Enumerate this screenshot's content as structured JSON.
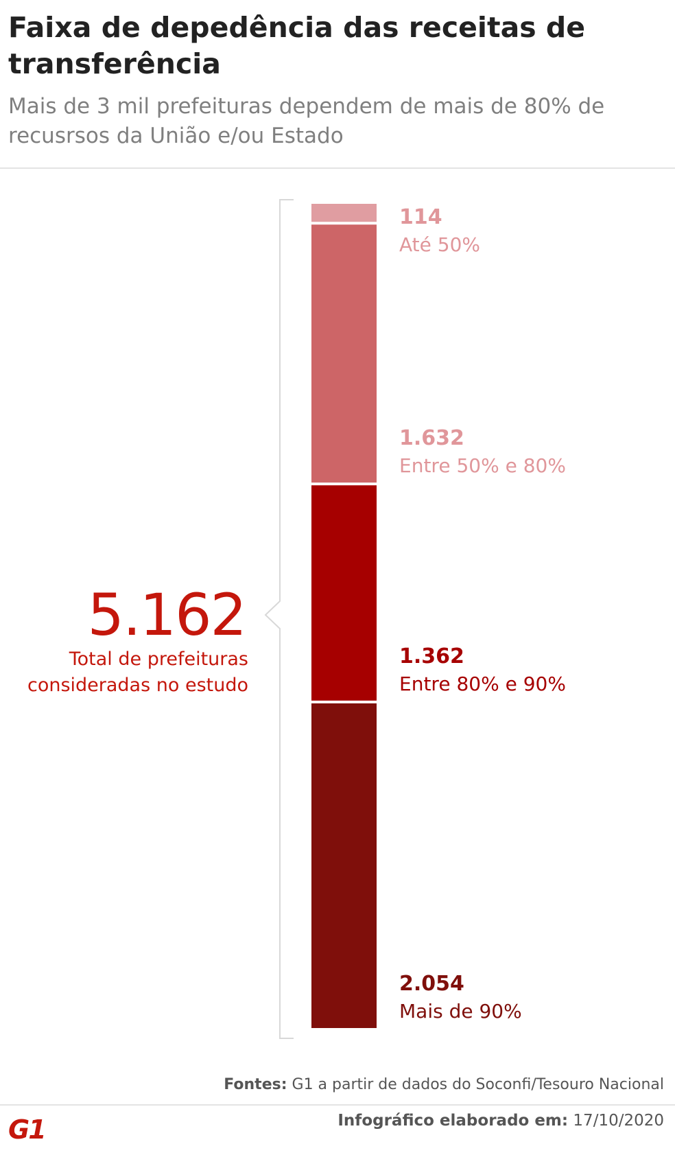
{
  "title": "Faixa de depedência das receitas de transferência",
  "subtitle": "Mais de 3 mil prefeituras dependem de mais de 80% de recusrsos da União e/ou Estado",
  "total": {
    "value": "5.162",
    "label_line1": "Total de prefeituras",
    "label_line2": "consideradas no estudo"
  },
  "chart_data": {
    "type": "bar",
    "stacked": true,
    "orientation": "vertical",
    "title": "Faixa de depedência das receitas de transferência",
    "subtitle": "Mais de 3 mil prefeituras dependem de mais de 80% de recusrsos da União e/ou Estado",
    "total": 5162,
    "categories": [
      "Até 50%",
      "Entre 50% e 80%",
      "Entre 80% e 90%",
      "Mais de 90%"
    ],
    "values": [
      114,
      1632,
      1362,
      2054
    ],
    "value_labels": [
      "114",
      "1.632",
      "1.362",
      "2.054"
    ],
    "colors": [
      "#e09da1",
      "#cd6567",
      "#a60000",
      "#7f0f0b"
    ],
    "text_colors": [
      "#e0969a",
      "#e0969a",
      "#a60000",
      "#7f0f0b"
    ]
  },
  "footer": {
    "source_label": "Fontes:",
    "source_text": "G1 a partir de dados do Soconfi/Tesouro Nacional",
    "date_label": "Infográfico elaborado em:",
    "date_value": "17/10/2020",
    "logo_text": "G1"
  }
}
